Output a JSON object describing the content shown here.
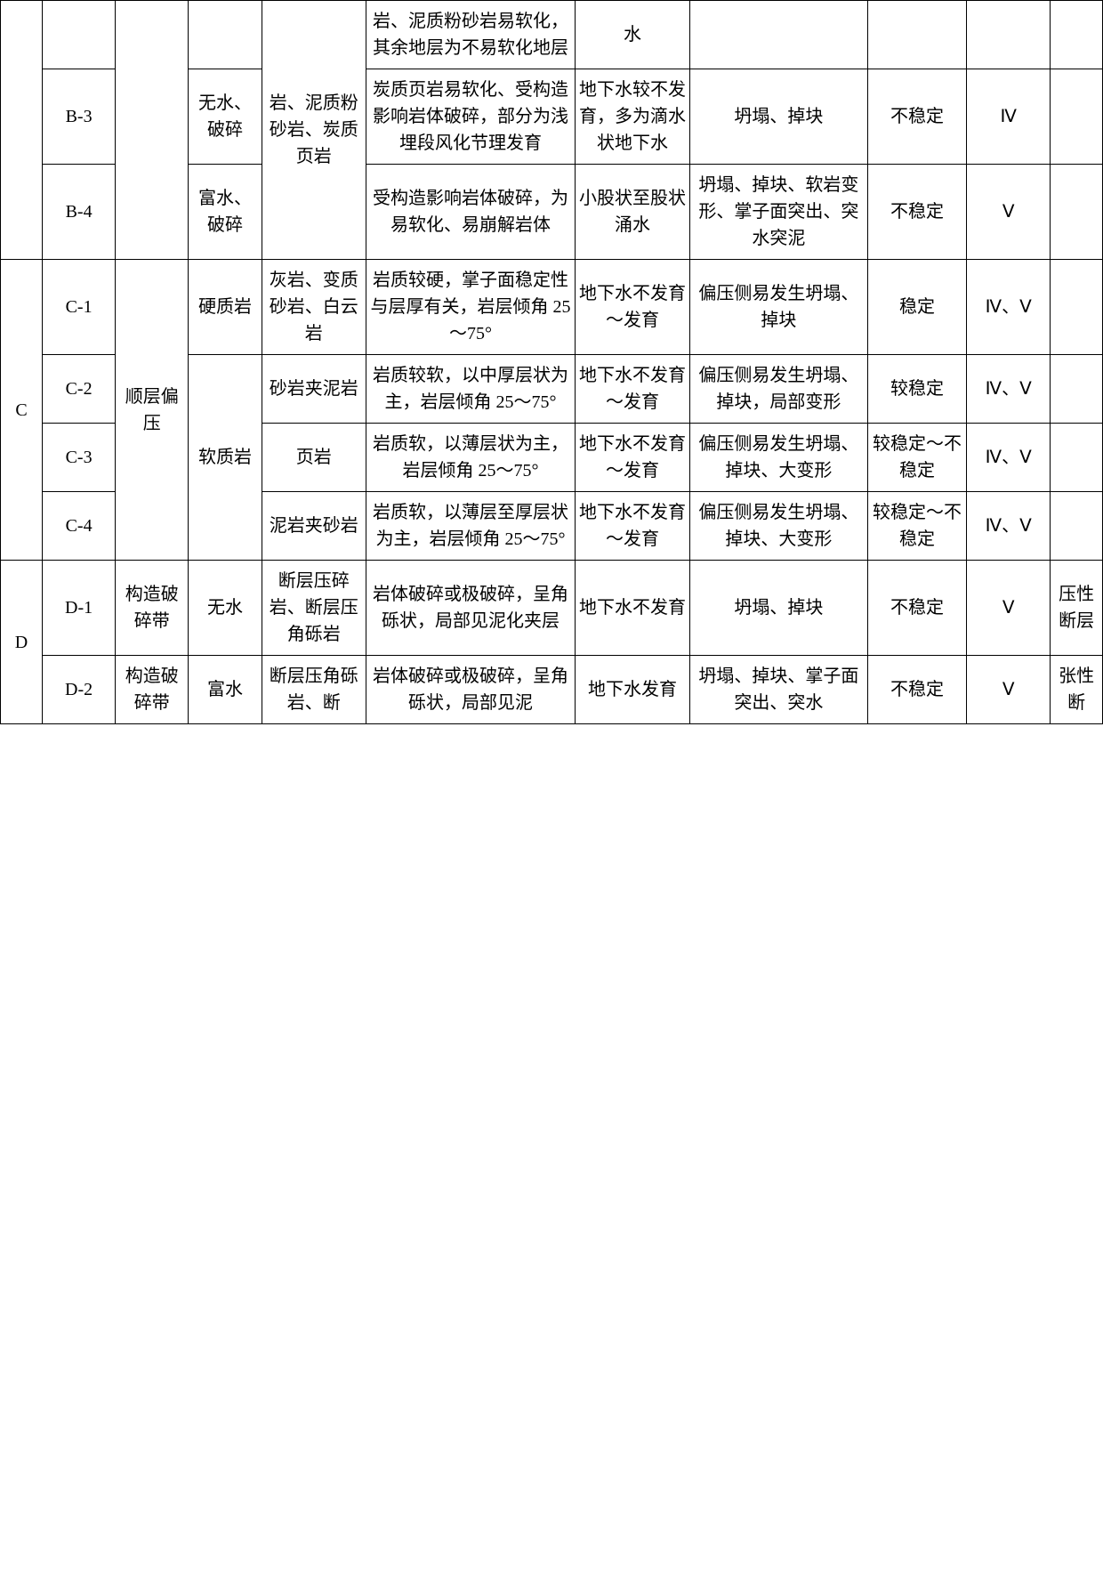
{
  "table": {
    "rows": [
      {
        "c4": "岩、泥质粉砂岩、炭质页岩",
        "c5": "岩、泥质粉砂岩易软化，其余地层为不易软化地层",
        "c6": "水",
        "c7": "",
        "c8": "",
        "c9": "",
        "c10": ""
      },
      {
        "c1": "B-3",
        "c3": "无水、破碎",
        "c5": "炭质页岩易软化、受构造影响岩体破碎，部分为浅埋段风化节理发育",
        "c6": "地下水较不发育，多为滴水状地下水",
        "c7": "坍塌、掉块",
        "c8": "不稳定",
        "c9": "Ⅳ",
        "c10": ""
      },
      {
        "c1": "B-4",
        "c3": "富水、破碎",
        "c5": "受构造影响岩体破碎，为易软化、易崩解岩体",
        "c6": "小股状至股状涌水",
        "c7": "坍塌、掉块、软岩变形、掌子面突出、突水突泥",
        "c8": "不稳定",
        "c9": "Ⅴ",
        "c10": ""
      },
      {
        "c0": "C",
        "c1": "C-1",
        "c2": "顺层偏压",
        "c3": "硬质岩",
        "c4": "灰岩、变质砂岩、白云岩",
        "c5": "岩质较硬，掌子面稳定性与层厚有关，岩层倾角 25～75°",
        "c6": "地下水不发育～发育",
        "c7": "偏压侧易发生坍塌、掉块",
        "c8": "稳定",
        "c9": "Ⅳ、Ⅴ",
        "c10": ""
      },
      {
        "c1": "C-2",
        "c3": "软质岩",
        "c4": "砂岩夹泥岩",
        "c5": "岩质较软，以中厚层状为主，岩层倾角 25～75°",
        "c6": "地下水不发育～发育",
        "c7": "偏压侧易发生坍塌、掉块，局部变形",
        "c8": "较稳定",
        "c9": "Ⅳ、Ⅴ",
        "c10": ""
      },
      {
        "c1": "C-3",
        "c4": "页岩",
        "c5": "岩质软，以薄层状为主，岩层倾角 25～75°",
        "c6": "地下水不发育～发育",
        "c7": "偏压侧易发生坍塌、掉块、大变形",
        "c8": "较稳定～不稳定",
        "c9": "Ⅳ、Ⅴ",
        "c10": ""
      },
      {
        "c1": "C-4",
        "c4": "泥岩夹砂岩",
        "c5": "岩质软，以薄层至厚层状为主，岩层倾角 25～75°",
        "c6": "地下水不发育～发育",
        "c7": "偏压侧易发生坍塌、掉块、大变形",
        "c8": "较稳定～不稳定",
        "c9": "Ⅳ、Ⅴ",
        "c10": ""
      },
      {
        "c0": "D",
        "c1": "D-1",
        "c2": "构造破碎带",
        "c3": "无水",
        "c4": "断层压碎岩、断层压角砾岩",
        "c5": "岩体破碎或极破碎，呈角砾状，局部见泥化夹层",
        "c6": "地下水不发育",
        "c7": "坍塌、掉块",
        "c8": "不稳定",
        "c9": "Ⅴ",
        "c10": "压性断层"
      },
      {
        "c1": "D-2",
        "c2": "构造破碎带",
        "c3": "富水",
        "c4": "断层压角砾岩、断",
        "c5": "岩体破碎或极破碎，呈角砾状，局部见泥",
        "c6": "地下水发育",
        "c7": "坍塌、掉块、掌子面突出、突水",
        "c8": "不稳定",
        "c9": "Ⅴ",
        "c10": "张性断"
      }
    ]
  }
}
